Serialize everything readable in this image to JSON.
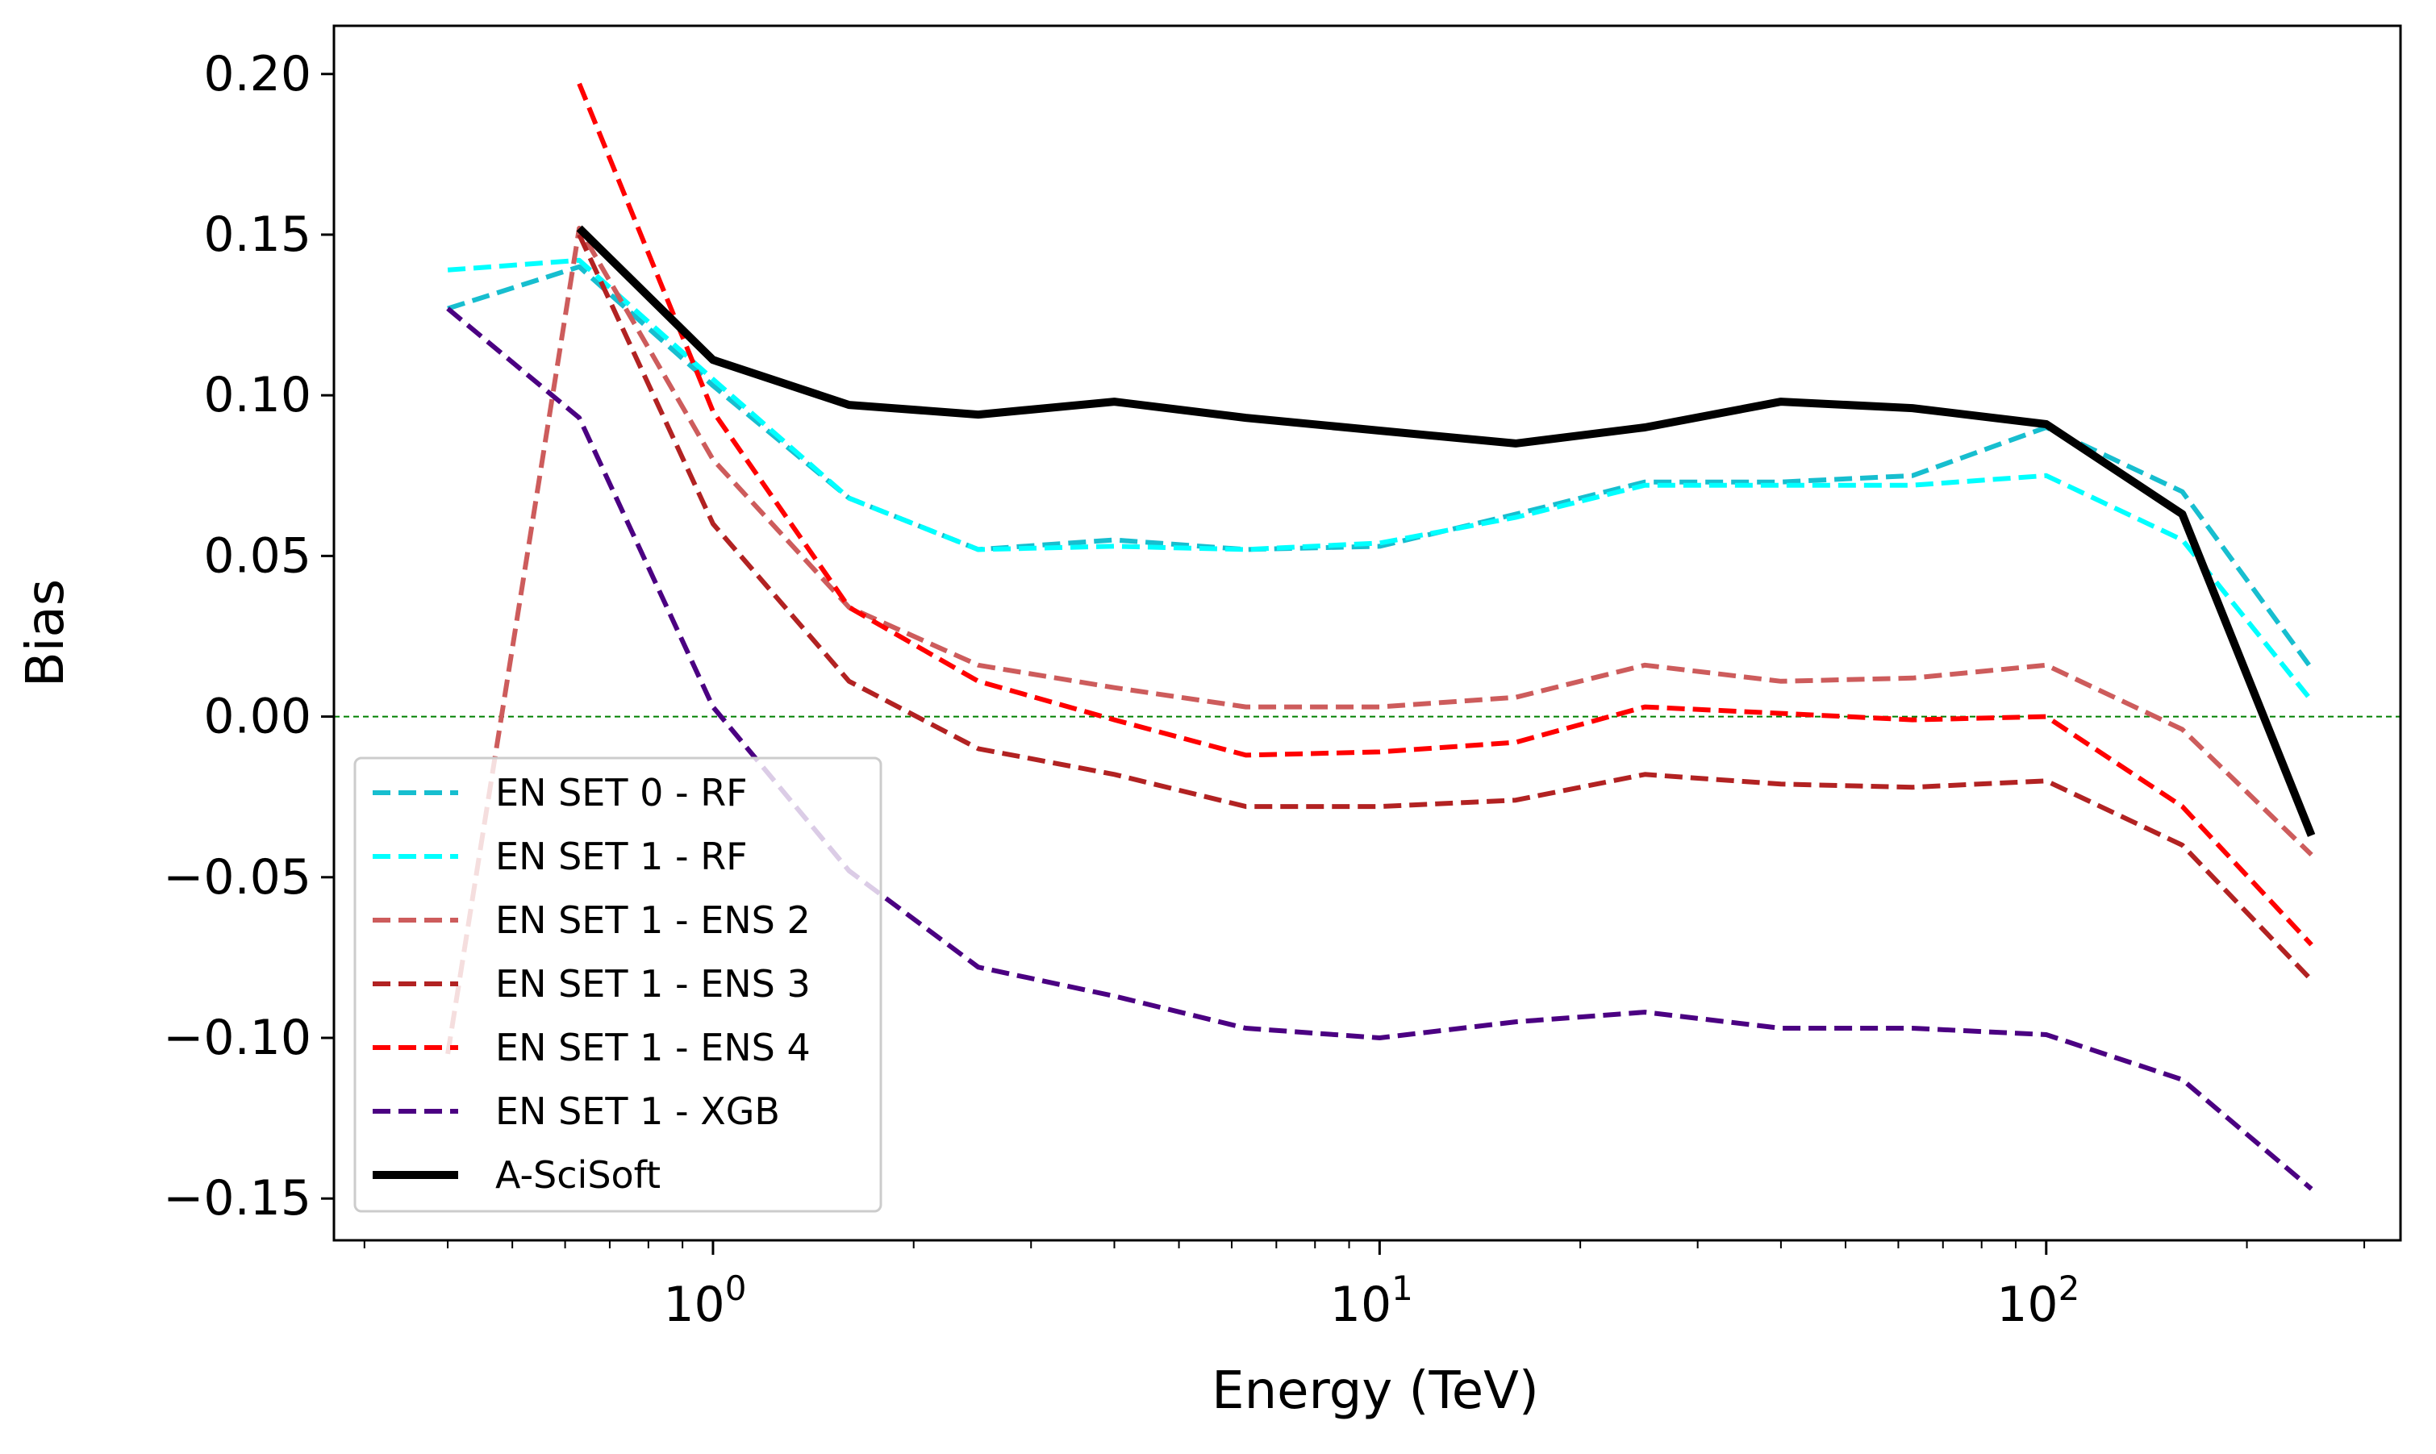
{
  "chart_data": {
    "type": "line",
    "title": "",
    "xlabel": "Energy (TeV)",
    "ylabel": "Bias",
    "xscale": "log",
    "xlim": [
      0.27,
      340
    ],
    "ylim": [
      -0.163,
      0.215
    ],
    "x_ticks": [
      {
        "base": "10",
        "exp": "0",
        "value": 1
      },
      {
        "base": "10",
        "exp": "1",
        "value": 10
      },
      {
        "base": "10",
        "exp": "2",
        "value": 100
      }
    ],
    "y_ticks": [
      {
        "label": "0.20",
        "value": 0.2
      },
      {
        "label": "0.15",
        "value": 0.15
      },
      {
        "label": "0.10",
        "value": 0.1
      },
      {
        "label": "0.05",
        "value": 0.05
      },
      {
        "label": "0.00",
        "value": 0.0
      },
      {
        "label": "−0.05",
        "value": -0.05
      },
      {
        "label": "−0.10",
        "value": -0.1
      },
      {
        "label": "−0.15",
        "value": -0.15
      }
    ],
    "reference_line": {
      "y": 0.0,
      "color": "#008000",
      "style": "dashed"
    },
    "legend_position": "lower-left",
    "series": [
      {
        "name": "EN SET 0 - RF",
        "color": "#17becf",
        "style": "dashed",
        "x": [
          0.4,
          0.63,
          1.0,
          1.6,
          2.5,
          4.0,
          6.3,
          10,
          16,
          25,
          40,
          63,
          100,
          160,
          250
        ],
        "y": [
          0.127,
          0.14,
          0.103,
          0.068,
          0.052,
          0.055,
          0.052,
          0.053,
          0.063,
          0.073,
          0.073,
          0.075,
          0.09,
          0.07,
          0.015
        ]
      },
      {
        "name": "EN SET 1 - RF",
        "color": "#00ffff",
        "style": "dashed",
        "x": [
          0.4,
          0.63,
          1.0,
          1.6,
          2.5,
          4.0,
          6.3,
          10,
          16,
          25,
          40,
          63,
          100,
          160,
          250
        ],
        "y": [
          0.139,
          0.142,
          0.105,
          0.068,
          0.052,
          0.053,
          0.052,
          0.054,
          0.062,
          0.072,
          0.072,
          0.072,
          0.075,
          0.055,
          0.005
        ]
      },
      {
        "name": "EN SET 1 - ENS 2",
        "color": "#cd5c5c",
        "style": "dashed",
        "x": [
          0.4,
          0.63,
          1.0,
          1.6,
          2.5,
          4.0,
          6.3,
          10,
          16,
          25,
          40,
          63,
          100,
          160,
          250
        ],
        "y": [
          -0.105,
          0.152,
          0.08,
          0.034,
          0.016,
          0.009,
          0.003,
          0.003,
          0.006,
          0.016,
          0.011,
          0.012,
          0.016,
          -0.004,
          -0.043
        ]
      },
      {
        "name": "EN SET 1 - ENS 3",
        "color": "#b22222",
        "style": "dashed",
        "x": [
          0.63,
          1.0,
          1.6,
          2.5,
          4.0,
          6.3,
          10,
          16,
          25,
          40,
          63,
          100,
          160,
          250
        ],
        "y": [
          0.15,
          0.06,
          0.011,
          -0.01,
          -0.018,
          -0.028,
          -0.028,
          -0.026,
          -0.018,
          -0.021,
          -0.022,
          -0.02,
          -0.04,
          -0.082
        ]
      },
      {
        "name": "EN SET 1 - ENS 4",
        "color": "#ff0000",
        "style": "dashed",
        "x": [
          0.63,
          1.0,
          1.6,
          2.5,
          4.0,
          6.3,
          10,
          16,
          25,
          40,
          63,
          100,
          160,
          250
        ],
        "y": [
          0.197,
          0.095,
          0.034,
          0.011,
          -0.001,
          -0.012,
          -0.011,
          -0.008,
          0.003,
          0.001,
          -0.001,
          0.0,
          -0.028,
          -0.071
        ]
      },
      {
        "name": "EN SET 1 - XGB",
        "color": "#4b0082",
        "style": "dashed",
        "x": [
          0.4,
          0.63,
          1.0,
          1.6,
          2.5,
          4.0,
          6.3,
          10,
          16,
          25,
          40,
          63,
          100,
          160,
          250
        ],
        "y": [
          0.127,
          0.093,
          0.003,
          -0.048,
          -0.078,
          -0.087,
          -0.097,
          -0.1,
          -0.095,
          -0.092,
          -0.097,
          -0.097,
          -0.099,
          -0.113,
          -0.147
        ]
      },
      {
        "name": "A-SciSoft",
        "color": "#000000",
        "style": "solid",
        "x": [
          0.63,
          1.0,
          1.6,
          2.5,
          4.0,
          6.3,
          10,
          16,
          25,
          40,
          63,
          100,
          160,
          250
        ],
        "y": [
          0.152,
          0.111,
          0.097,
          0.094,
          0.098,
          0.093,
          0.089,
          0.085,
          0.09,
          0.098,
          0.096,
          0.091,
          0.063,
          -0.037
        ]
      }
    ]
  }
}
